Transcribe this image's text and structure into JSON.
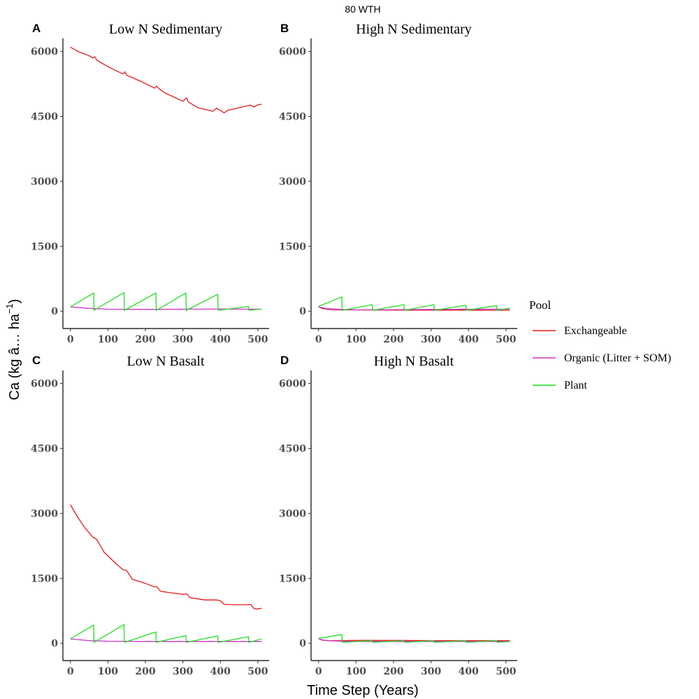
{
  "chart_data": {
    "type": "line",
    "title": "80 WTH",
    "xlabel": "Time Step (Years)",
    "ylabel": "Ca (kg â… ha",
    "ylabel_exponent": "−1",
    "ylabel_close": ")",
    "xlim": [
      0,
      510
    ],
    "ylim": [
      0,
      6200
    ],
    "x_ticks": [
      "0",
      "100",
      "200",
      "300",
      "400",
      "500"
    ],
    "y_ticks": [
      "0",
      "1500",
      "3000",
      "4500",
      "6000"
    ],
    "legend": {
      "title": "Pool",
      "position": "right",
      "entries": [
        {
          "name": "Exchangeable",
          "color": "#e41a1c"
        },
        {
          "name": "Organic (Litter + SOM)",
          "color": "#cc33cc"
        },
        {
          "name": "Plant",
          "color": "#22dd22"
        }
      ]
    },
    "panels": [
      {
        "letter": "A",
        "title": "Low N Sedimentary",
        "series": [
          {
            "name": "Exchangeable",
            "x": [
              0,
              20,
              50,
              60,
              65,
              70,
              100,
              140,
              145,
              150,
              190,
              225,
              230,
              235,
              250,
              300,
              310,
              315,
              340,
              380,
              390,
              395,
              400,
              410,
              420,
              460,
              480,
              490,
              500,
              510
            ],
            "y": [
              6100,
              6000,
              5900,
              5850,
              5880,
              5800,
              5650,
              5480,
              5530,
              5450,
              5300,
              5150,
              5200,
              5150,
              5050,
              4850,
              4930,
              4830,
              4700,
              4620,
              4690,
              4660,
              4640,
              4580,
              4640,
              4720,
              4760,
              4720,
              4770,
              4780
            ]
          },
          {
            "name": "Organic (Litter + SOM)",
            "x": [
              0,
              50,
              100,
              200,
              300,
              400,
              500,
              510
            ],
            "y": [
              100,
              65,
              45,
              40,
              45,
              50,
              45,
              45
            ]
          },
          {
            "name": "Plant",
            "x": [
              0,
              62,
              63,
              143,
              144,
              228,
              229,
              308,
              309,
              393,
              394,
              475,
              476,
              510
            ],
            "y": [
              100,
              420,
              20,
              430,
              20,
              420,
              20,
              420,
              20,
              390,
              20,
              110,
              20,
              50
            ]
          }
        ]
      },
      {
        "letter": "B",
        "title": "High N Sedimentary",
        "series": [
          {
            "name": "Exchangeable",
            "x": [
              0,
              10,
              30,
              60,
              100,
              200,
              300,
              400,
              500,
              510
            ],
            "y": [
              110,
              60,
              40,
              30,
              30,
              25,
              25,
              25,
              20,
              20
            ]
          },
          {
            "name": "Organic (Litter + SOM)",
            "x": [
              0,
              20,
              60,
              100,
              200,
              300,
              400,
              500,
              510
            ],
            "y": [
              100,
              60,
              40,
              30,
              35,
              40,
              45,
              45,
              45
            ]
          },
          {
            "name": "Plant",
            "x": [
              0,
              62,
              63,
              143,
              144,
              228,
              229,
              308,
              309,
              393,
              394,
              475,
              476,
              510
            ],
            "y": [
              110,
              330,
              20,
              150,
              20,
              150,
              20,
              150,
              20,
              140,
              20,
              130,
              20,
              70
            ]
          }
        ]
      },
      {
        "letter": "C",
        "title": "Low N Basalt",
        "series": [
          {
            "name": "Exchangeable",
            "x": [
              0,
              20,
              40,
              60,
              70,
              90,
              120,
              140,
              150,
              165,
              200,
              225,
              230,
              240,
              280,
              300,
              310,
              320,
              360,
              390,
              400,
              410,
              440,
              470,
              480,
              490,
              500,
              510
            ],
            "y": [
              3200,
              2900,
              2650,
              2450,
              2400,
              2100,
              1850,
              1700,
              1680,
              1480,
              1380,
              1300,
              1310,
              1200,
              1150,
              1130,
              1140,
              1050,
              1000,
              1000,
              980,
              900,
              890,
              890,
              900,
              800,
              790,
              810
            ]
          },
          {
            "name": "Organic (Litter + SOM)",
            "x": [
              0,
              50,
              100,
              200,
              300,
              400,
              500,
              510
            ],
            "y": [
              100,
              60,
              45,
              40,
              40,
              40,
              40,
              40
            ]
          },
          {
            "name": "Plant",
            "x": [
              0,
              62,
              63,
              143,
              144,
              228,
              229,
              308,
              309,
              393,
              394,
              475,
              476,
              510
            ],
            "y": [
              100,
              420,
              20,
              430,
              20,
              260,
              20,
              180,
              20,
              170,
              20,
              150,
              20,
              100
            ]
          }
        ]
      },
      {
        "letter": "D",
        "title": "High N Basalt",
        "series": [
          {
            "name": "Exchangeable",
            "x": [
              0,
              10,
              30,
              60,
              100,
              200,
              300,
              400,
              500,
              510
            ],
            "y": [
              110,
              70,
              60,
              60,
              65,
              65,
              60,
              60,
              60,
              60
            ]
          },
          {
            "name": "Organic (Litter + SOM)",
            "x": [
              0,
              20,
              60,
              100,
              200,
              300,
              400,
              500,
              510
            ],
            "y": [
              100,
              60,
              45,
              40,
              40,
              40,
              40,
              40,
              40
            ]
          },
          {
            "name": "Plant",
            "x": [
              0,
              62,
              63,
              143,
              144,
              228,
              229,
              308,
              309,
              393,
              394,
              475,
              476,
              510
            ],
            "y": [
              110,
              200,
              20,
              60,
              20,
              60,
              20,
              60,
              20,
              60,
              20,
              60,
              20,
              40
            ]
          }
        ]
      }
    ]
  }
}
